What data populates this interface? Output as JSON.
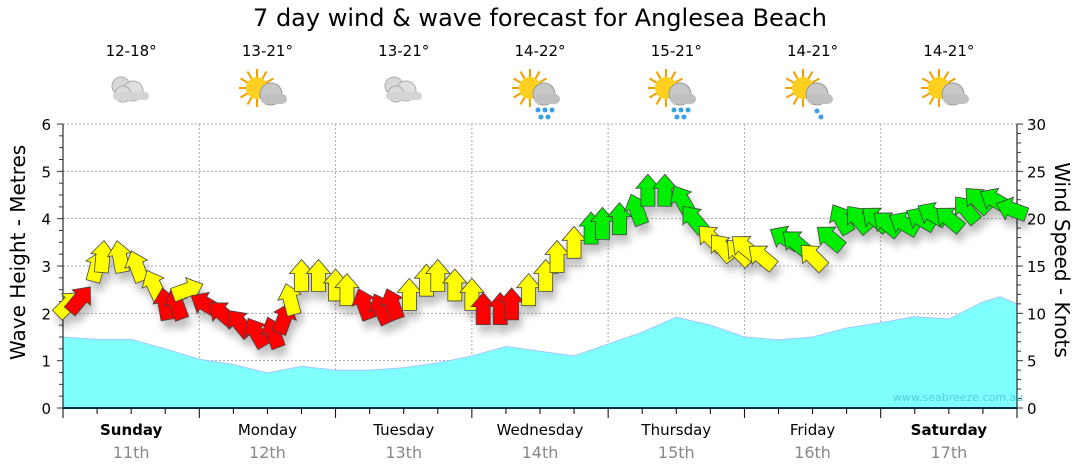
{
  "title": "7 day wind & wave forecast for Anglesea Beach",
  "forecast": [
    {
      "temp": "12-18°",
      "icon": "cloudy"
    },
    {
      "temp": "13-21°",
      "icon": "partly-cloudy"
    },
    {
      "temp": "13-21°",
      "icon": "cloudy"
    },
    {
      "temp": "14-22°",
      "icon": "showers"
    },
    {
      "temp": "15-21°",
      "icon": "showers"
    },
    {
      "temp": "14-21°",
      "icon": "light-showers"
    },
    {
      "temp": "14-21°",
      "icon": "partly-cloudy"
    }
  ],
  "days": [
    {
      "name": "Sunday",
      "date": "11th",
      "weekend": true
    },
    {
      "name": "Monday",
      "date": "12th",
      "weekend": false
    },
    {
      "name": "Tuesday",
      "date": "13th",
      "weekend": false
    },
    {
      "name": "Wednesday",
      "date": "14th",
      "weekend": false
    },
    {
      "name": "Thursday",
      "date": "15th",
      "weekend": false
    },
    {
      "name": "Friday",
      "date": "16th",
      "weekend": false
    },
    {
      "name": "Saturday",
      "date": "17th",
      "weekend": true
    }
  ],
  "watermark": "www.seabreeze.com.au",
  "colors": {
    "wave": "#80ffff",
    "wave_line": "#a0c8ff",
    "r": "#ff0000",
    "y": "#ffff00",
    "g": "#00ee00",
    "grid": "#aaaaaa"
  },
  "chart_data": {
    "type": "area",
    "title": "7 day wind & wave forecast for Anglesea Beach",
    "ylabel": "Wave Height - Metres",
    "y2label": "Wind Speed - Knots",
    "ylim": [
      0,
      6
    ],
    "y2lim": [
      0,
      30
    ],
    "yticks": [
      "0",
      "1",
      "2",
      "3",
      "4",
      "5",
      "6"
    ],
    "y2ticks": [
      "0",
      "5",
      "10",
      "15",
      "20",
      "25",
      "30"
    ],
    "xlim_hours": [
      0,
      168
    ],
    "grid": true,
    "wave_height": {
      "name": "Wave height (m)",
      "hours": [
        0,
        6,
        12,
        18,
        24,
        30,
        36,
        42,
        48,
        54,
        60,
        66,
        72,
        78,
        84,
        90,
        96,
        102,
        108,
        114,
        120,
        126,
        132,
        138,
        144,
        150,
        156,
        162,
        165,
        168
      ],
      "values": [
        1.5,
        1.45,
        1.45,
        1.25,
        1.03,
        0.92,
        0.74,
        0.88,
        0.8,
        0.8,
        0.85,
        0.95,
        1.1,
        1.3,
        1.2,
        1.1,
        1.35,
        1.6,
        1.92,
        1.75,
        1.5,
        1.44,
        1.5,
        1.69,
        1.8,
        1.93,
        1.88,
        2.24,
        2.35,
        2.2
      ]
    },
    "wind": {
      "name": "Wind speed (knots) / direction arrow (degrees, 0 = pointing up)",
      "points": [
        [
          1,
          11,
          45,
          "y"
        ],
        [
          3,
          11.5,
          40,
          "r"
        ],
        [
          6,
          15,
          15,
          "y"
        ],
        [
          7,
          16,
          5,
          "y"
        ],
        [
          10,
          16,
          -10,
          "y"
        ],
        [
          13,
          15,
          -20,
          "y"
        ],
        [
          16,
          13,
          -25,
          "y"
        ],
        [
          18,
          11,
          -10,
          "r"
        ],
        [
          20,
          11,
          -20,
          "r"
        ],
        [
          22,
          12.5,
          70,
          "y"
        ],
        [
          25,
          11,
          -60,
          "r"
        ],
        [
          28,
          10,
          -50,
          "r"
        ],
        [
          31,
          9,
          -40,
          "r"
        ],
        [
          34,
          8,
          -30,
          "r"
        ],
        [
          37,
          8,
          -20,
          "r"
        ],
        [
          39,
          9.5,
          20,
          "r"
        ],
        [
          40,
          11.5,
          -15,
          "y"
        ],
        [
          42,
          14,
          0,
          "y"
        ],
        [
          45,
          14,
          0,
          "y"
        ],
        [
          48,
          13,
          0,
          "y"
        ],
        [
          50,
          12.5,
          0,
          "y"
        ],
        [
          53,
          11,
          -20,
          "r"
        ],
        [
          56,
          10.5,
          -25,
          "r"
        ],
        [
          58,
          11,
          -20,
          "r"
        ],
        [
          61,
          12,
          0,
          "y"
        ],
        [
          64,
          13.5,
          0,
          "y"
        ],
        [
          66,
          14,
          0,
          "y"
        ],
        [
          69,
          13,
          0,
          "y"
        ],
        [
          72,
          12,
          0,
          "y"
        ],
        [
          74,
          10.5,
          0,
          "r"
        ],
        [
          77,
          10.5,
          0,
          "r"
        ],
        [
          79,
          11,
          0,
          "r"
        ],
        [
          82,
          12.5,
          0,
          "y"
        ],
        [
          85,
          14,
          0,
          "y"
        ],
        [
          87,
          16,
          0,
          "y"
        ],
        [
          90,
          17.5,
          0,
          "y"
        ],
        [
          93,
          19,
          0,
          "g"
        ],
        [
          95,
          19.5,
          0,
          "g"
        ],
        [
          98,
          20,
          0,
          "g"
        ],
        [
          101,
          21,
          -20,
          "g"
        ],
        [
          103,
          23,
          0,
          "g"
        ],
        [
          106,
          23,
          0,
          "g"
        ],
        [
          109,
          22,
          -30,
          "g"
        ],
        [
          111,
          20,
          -40,
          "g"
        ],
        [
          114,
          18,
          -45,
          "y"
        ],
        [
          116,
          17,
          -40,
          "y"
        ],
        [
          119,
          16.5,
          -45,
          "y"
        ],
        [
          120,
          17,
          -50,
          "y"
        ],
        [
          123,
          16,
          -50,
          "y"
        ],
        [
          127,
          18,
          -60,
          "g"
        ],
        [
          129,
          17.5,
          -50,
          "g"
        ],
        [
          132,
          16,
          -45,
          "y"
        ],
        [
          135,
          18,
          -50,
          "g"
        ],
        [
          137,
          20,
          -30,
          "g"
        ],
        [
          140,
          20,
          -40,
          "g"
        ],
        [
          143,
          20,
          -50,
          "g"
        ],
        [
          145,
          19.5,
          -50,
          "g"
        ],
        [
          148,
          19.5,
          -60,
          "g"
        ],
        [
          151,
          20,
          -60,
          "g"
        ],
        [
          153,
          20.5,
          -60,
          "g"
        ],
        [
          156,
          20,
          -50,
          "g"
        ],
        [
          159,
          21,
          -40,
          "g"
        ],
        [
          161,
          22,
          -45,
          "g"
        ],
        [
          164,
          22,
          -60,
          "g"
        ],
        [
          167,
          21,
          -70,
          "g"
        ]
      ]
    }
  }
}
